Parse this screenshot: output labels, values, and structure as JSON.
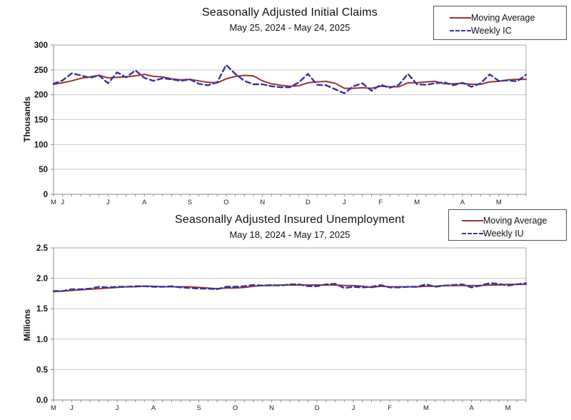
{
  "colors": {
    "moving_average": "#993333",
    "weekly": "#3333A0",
    "gridline": "#c9c9c9",
    "axis": "#888888",
    "plot_border": "#aaaaaa",
    "background": "#ffffff"
  },
  "chart_data": [
    {
      "type": "line",
      "title": "Seasonally Adjusted Initial Claims",
      "subtitle": "May 25, 2024 - May 24, 2025",
      "ylabel": "Thousands",
      "ylim": [
        0,
        300
      ],
      "ytick_labels": [
        "0",
        "50",
        "100",
        "150",
        "200",
        "250",
        "300"
      ],
      "grid": true,
      "legend_position": "top-right",
      "x_month_labels": [
        "M",
        "J",
        "J",
        "A",
        "S",
        "O",
        "N",
        "D",
        "J",
        "F",
        "M",
        "A",
        "M"
      ],
      "x_month_week_index": [
        0,
        1,
        6,
        10,
        15,
        19,
        23,
        28,
        32,
        36,
        40,
        45,
        49
      ],
      "legend": [
        {
          "label": "Moving Average",
          "style": "solid",
          "color": "#993333"
        },
        {
          "label": "Weekly IC",
          "style": "dashed",
          "color": "#3333A0"
        }
      ],
      "series": [
        {
          "name": "Moving Average",
          "style": "solid",
          "color": "#993333",
          "values": [
            221,
            224,
            228,
            233,
            236,
            239,
            234,
            235,
            236,
            238,
            241,
            237,
            236,
            232,
            230,
            231,
            228,
            225,
            224,
            232,
            237,
            239,
            238,
            228,
            222,
            219,
            217,
            218,
            224,
            226,
            227,
            223,
            213,
            213,
            214,
            213,
            217,
            216,
            216,
            224,
            224,
            226,
            227,
            222,
            222,
            223,
            221,
            221,
            226,
            227,
            230,
            231,
            231
          ]
        },
        {
          "name": "Weekly IC",
          "style": "dashed",
          "color": "#3333A0",
          "values": [
            222,
            229,
            243,
            239,
            234,
            239,
            223,
            245,
            235,
            249,
            234,
            228,
            233,
            231,
            228,
            231,
            222,
            219,
            225,
            260,
            242,
            228,
            221,
            221,
            217,
            215,
            215,
            225,
            242,
            220,
            219,
            211,
            203,
            217,
            223,
            208,
            220,
            214,
            220,
            242,
            221,
            220,
            223,
            225,
            219,
            224,
            216,
            223,
            241,
            228,
            229,
            227,
            240
          ]
        }
      ]
    },
    {
      "type": "line",
      "title": "Seasonally Adjusted Insured Unemployment",
      "subtitle": "May 18, 2024 - May 17, 2025",
      "ylabel": "Millions",
      "ylim": [
        0,
        2.5
      ],
      "ytick_labels": [
        "0.0",
        "0.5",
        "1.0",
        "1.5",
        "2.0",
        "2.5"
      ],
      "grid": true,
      "legend_position": "top-right",
      "x_month_labels": [
        "M",
        "J",
        "J",
        "A",
        "S",
        "O",
        "N",
        "D",
        "J",
        "F",
        "M",
        "A",
        "M"
      ],
      "x_month_week_index": [
        0,
        2,
        7,
        11,
        16,
        20,
        24,
        29,
        33,
        37,
        41,
        46,
        50
      ],
      "legend": [
        {
          "label": "Moving Average",
          "style": "solid",
          "color": "#993333"
        },
        {
          "label": "Weekly IU",
          "style": "dashed",
          "color": "#3333A0"
        }
      ],
      "series": [
        {
          "name": "Moving Average",
          "style": "solid",
          "color": "#993333",
          "values": [
            1.78,
            1.79,
            1.8,
            1.81,
            1.82,
            1.83,
            1.84,
            1.85,
            1.86,
            1.86,
            1.87,
            1.87,
            1.86,
            1.86,
            1.86,
            1.86,
            1.85,
            1.84,
            1.83,
            1.84,
            1.84,
            1.85,
            1.87,
            1.88,
            1.88,
            1.89,
            1.89,
            1.89,
            1.89,
            1.89,
            1.89,
            1.89,
            1.88,
            1.88,
            1.87,
            1.85,
            1.87,
            1.86,
            1.86,
            1.86,
            1.86,
            1.87,
            1.87,
            1.88,
            1.88,
            1.88,
            1.88,
            1.88,
            1.89,
            1.89,
            1.9,
            1.9,
            1.9
          ]
        },
        {
          "name": "Weekly IU",
          "style": "dashed",
          "color": "#3333A0",
          "values": [
            1.79,
            1.79,
            1.82,
            1.82,
            1.83,
            1.86,
            1.85,
            1.86,
            1.86,
            1.87,
            1.87,
            1.86,
            1.86,
            1.87,
            1.85,
            1.84,
            1.83,
            1.83,
            1.82,
            1.86,
            1.86,
            1.87,
            1.89,
            1.88,
            1.89,
            1.88,
            1.9,
            1.9,
            1.87,
            1.87,
            1.9,
            1.91,
            1.84,
            1.86,
            1.85,
            1.86,
            1.89,
            1.85,
            1.85,
            1.86,
            1.86,
            1.9,
            1.86,
            1.88,
            1.89,
            1.9,
            1.85,
            1.88,
            1.92,
            1.91,
            1.88,
            1.9,
            1.92
          ]
        }
      ]
    }
  ]
}
